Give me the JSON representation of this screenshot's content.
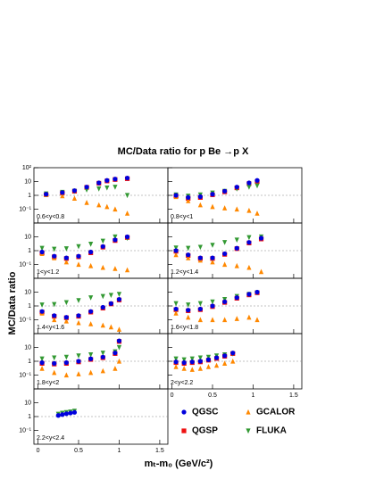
{
  "chart_data": {
    "type": "scatter",
    "title": "MC/Data ratio for p Be →p X",
    "y_label": "MC/Data ratio",
    "x_label": "mₜ-m₀ (GeV/c²)",
    "log_y": true,
    "xlim": [
      -0.05,
      1.6
    ],
    "ylim": [
      0.01,
      100
    ],
    "xticks": [
      0,
      0.5,
      1,
      1.5
    ],
    "yticks": [
      {
        "value": 0.1,
        "label": "10⁻¹"
      },
      1,
      10,
      {
        "value": 100,
        "label": "10²"
      }
    ],
    "reference_line": 1,
    "series": [
      {
        "name": "QGSC",
        "color": "#0000dd",
        "marker": "circle"
      },
      {
        "name": "QGSP",
        "color": "#ee1111",
        "marker": "square"
      },
      {
        "name": "GCALOR",
        "color": "#ff8800",
        "marker": "triangle-up"
      },
      {
        "name": "FLUKA",
        "color": "#339933",
        "marker": "triangle-down"
      }
    ],
    "panels": [
      {
        "label": "0.6<y<0.8",
        "x": [
          0.1,
          0.3,
          0.45,
          0.6,
          0.75,
          0.85,
          0.95,
          1.1
        ],
        "values": [
          [
            1.2,
            1.6,
            2.2,
            4,
            8,
            12,
            15,
            18
          ],
          [
            1.1,
            1.5,
            2,
            3.8,
            7.5,
            11,
            14,
            16
          ],
          [
            1.1,
            0.9,
            0.6,
            0.3,
            0.2,
            0.15,
            0.1,
            0.05
          ],
          [
            1.3,
            1.7,
            2,
            2.5,
            3,
            3.5,
            4,
            1
          ]
        ]
      },
      {
        "label": "0.8<y<1",
        "x": [
          0.05,
          0.2,
          0.35,
          0.5,
          0.65,
          0.8,
          0.95,
          1.05
        ],
        "values": [
          [
            1,
            0.7,
            0.8,
            1.2,
            2,
            4,
            8,
            12
          ],
          [
            0.9,
            0.6,
            0.7,
            1.1,
            1.8,
            3.5,
            7,
            10
          ],
          [
            0.8,
            0.4,
            0.2,
            0.15,
            0.12,
            0.1,
            0.08,
            0.05
          ],
          [
            1.1,
            0.9,
            1.1,
            1.5,
            2,
            3,
            4,
            5
          ]
        ]
      },
      {
        "label": "1<y<1.2",
        "x": [
          0.05,
          0.2,
          0.35,
          0.5,
          0.65,
          0.8,
          0.95,
          1.1
        ],
        "values": [
          [
            0.8,
            0.4,
            0.3,
            0.4,
            0.8,
            2,
            6,
            10
          ],
          [
            0.7,
            0.36,
            0.27,
            0.36,
            0.7,
            1.8,
            5.4,
            9
          ],
          [
            0.6,
            0.3,
            0.15,
            0.1,
            0.08,
            0.06,
            0.05,
            0.04
          ],
          [
            1.5,
            1.3,
            1.4,
            2,
            3,
            5,
            10,
            8
          ]
        ]
      },
      {
        "label": "1.2<y<1.4",
        "x": [
          0.05,
          0.2,
          0.35,
          0.5,
          0.65,
          0.8,
          0.95,
          1.1
        ],
        "values": [
          [
            1,
            0.5,
            0.3,
            0.3,
            0.6,
            1.5,
            4,
            8
          ],
          [
            0.9,
            0.45,
            0.27,
            0.27,
            0.54,
            1.4,
            3.6,
            7
          ],
          [
            0.5,
            0.3,
            0.2,
            0.15,
            0.1,
            0.08,
            0.06,
            0.03
          ],
          [
            1.6,
            1.5,
            1.8,
            2.5,
            4,
            6,
            9,
            10
          ]
        ]
      },
      {
        "label": "1.4<y<1.6",
        "x": [
          0.05,
          0.2,
          0.35,
          0.5,
          0.65,
          0.8,
          0.9,
          1.0
        ],
        "values": [
          [
            0.4,
            0.2,
            0.15,
            0.2,
            0.4,
            0.8,
            1.5,
            3
          ],
          [
            0.36,
            0.18,
            0.14,
            0.18,
            0.36,
            0.7,
            1.4,
            2.7
          ],
          [
            0.3,
            0.1,
            0.08,
            0.06,
            0.05,
            0.04,
            0.03,
            0.02
          ],
          [
            1.2,
            1.3,
            1.8,
            2.5,
            4,
            5,
            6,
            7
          ]
        ]
      },
      {
        "label": "1.6<y<1.8",
        "x": [
          0.05,
          0.2,
          0.35,
          0.5,
          0.65,
          0.8,
          0.95,
          1.05
        ],
        "values": [
          [
            0.6,
            0.5,
            0.6,
            1,
            2,
            4,
            7,
            10
          ],
          [
            0.54,
            0.45,
            0.54,
            0.9,
            1.8,
            3.6,
            6.3,
            9
          ],
          [
            0.3,
            0.15,
            0.1,
            0.1,
            0.1,
            0.12,
            0.15,
            0.1
          ],
          [
            1.5,
            1.2,
            1.5,
            2,
            3,
            5,
            7,
            9
          ]
        ]
      },
      {
        "label": "1.8<y<2",
        "x": [
          0.05,
          0.2,
          0.35,
          0.5,
          0.65,
          0.8,
          0.95,
          1.0
        ],
        "values": [
          [
            0.8,
            0.7,
            0.8,
            1,
            1.5,
            2,
            4,
            30
          ],
          [
            0.7,
            0.63,
            0.7,
            0.9,
            1.35,
            1.8,
            3.6,
            27
          ],
          [
            0.3,
            0.15,
            0.1,
            0.12,
            0.15,
            0.2,
            0.3,
            1
          ],
          [
            1.5,
            1.8,
            2,
            2.5,
            3,
            4,
            5,
            10
          ]
        ]
      },
      {
        "label": "2<y<2.2",
        "x": [
          0.05,
          0.15,
          0.25,
          0.35,
          0.45,
          0.55,
          0.65,
          0.75
        ],
        "values": [
          [
            0.9,
            0.8,
            0.9,
            1,
            1.3,
            1.8,
            2.5,
            4
          ],
          [
            0.8,
            0.7,
            0.8,
            0.9,
            1.2,
            1.6,
            2.3,
            3.6
          ],
          [
            0.4,
            0.3,
            0.25,
            0.3,
            0.4,
            0.5,
            0.7,
            1
          ],
          [
            1.5,
            1.3,
            1.5,
            1.8,
            2,
            2.5,
            3,
            3.5
          ]
        ]
      },
      {
        "label": "2.2<y<2.4",
        "x": [
          0.25,
          0.3,
          0.35,
          0.4,
          0.45
        ],
        "values": [
          [
            1.2,
            1.4,
            1.6,
            1.8,
            2
          ],
          [
            null,
            null,
            null,
            null,
            null
          ],
          [
            null,
            null,
            null,
            null,
            null
          ],
          [
            1.5,
            1.8,
            2,
            2.2,
            2.5
          ]
        ]
      }
    ]
  }
}
